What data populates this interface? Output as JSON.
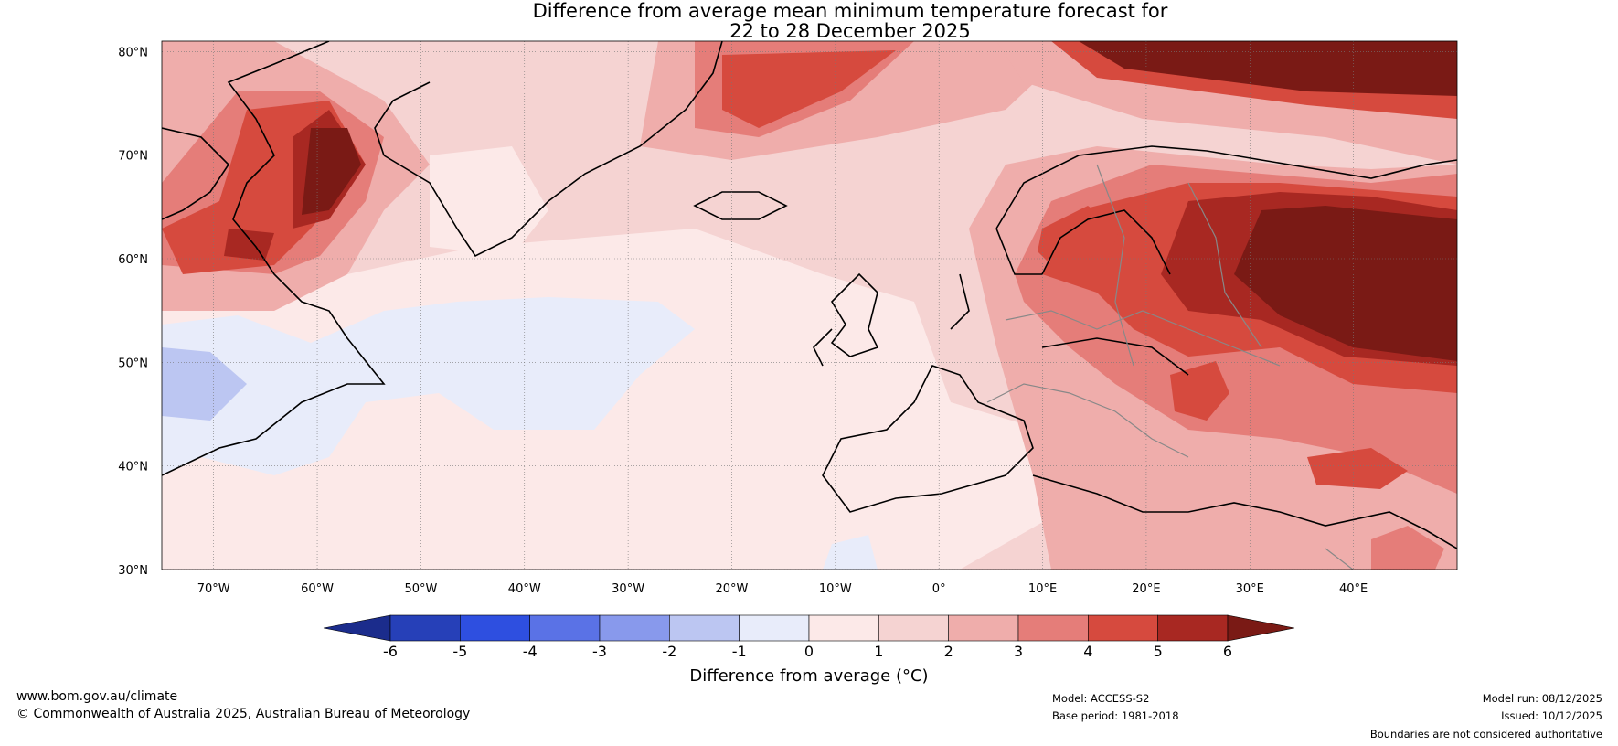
{
  "title": {
    "line1": "Difference from average mean minimum temperature forecast for",
    "line2": "22 to 28 December 2025"
  },
  "axes": {
    "lat_labels": [
      "80°N",
      "70°N",
      "60°N",
      "50°N",
      "40°N",
      "30°N"
    ],
    "lat_values": [
      80,
      70,
      60,
      50,
      40,
      30
    ],
    "lon_labels": [
      "70°W",
      "60°W",
      "50°W",
      "40°W",
      "30°W",
      "20°W",
      "10°W",
      "0°",
      "10°E",
      "20°E",
      "30°E",
      "40°E"
    ],
    "lon_values": [
      -70,
      -60,
      -50,
      -40,
      -30,
      -20,
      -10,
      0,
      10,
      20,
      30,
      40
    ],
    "lon_range": [
      -75,
      50
    ],
    "lat_range": [
      30,
      81
    ]
  },
  "colorbar": {
    "ticks": [
      "-6",
      "-5",
      "-4",
      "-3",
      "-2",
      "-1",
      "0",
      "1",
      "2",
      "3",
      "4",
      "5",
      "6"
    ],
    "colors": [
      "#1b2c8c",
      "#2640b8",
      "#2e4fe0",
      "#5a72e6",
      "#8899ec",
      "#bcc6f2",
      "#e8ecfa",
      "#fce9e8",
      "#f5d3d2",
      "#efadab",
      "#e57d79",
      "#d64a3e",
      "#a82822",
      "#7a1a15"
    ],
    "label": "Difference from average (°C)"
  },
  "footer": {
    "website": "www.bom.gov.au/climate",
    "copyright": "© Commonwealth of Australia 2025, Australian Bureau of Meteorology",
    "model": "Model: ACCESS-S2",
    "base_period": "Base period: 1981-2018",
    "model_run": "Model run: 08/12/2025",
    "issued": "Issued: 10/12/2025",
    "disclaimer": "Boundaries are not considered authoritative"
  }
}
